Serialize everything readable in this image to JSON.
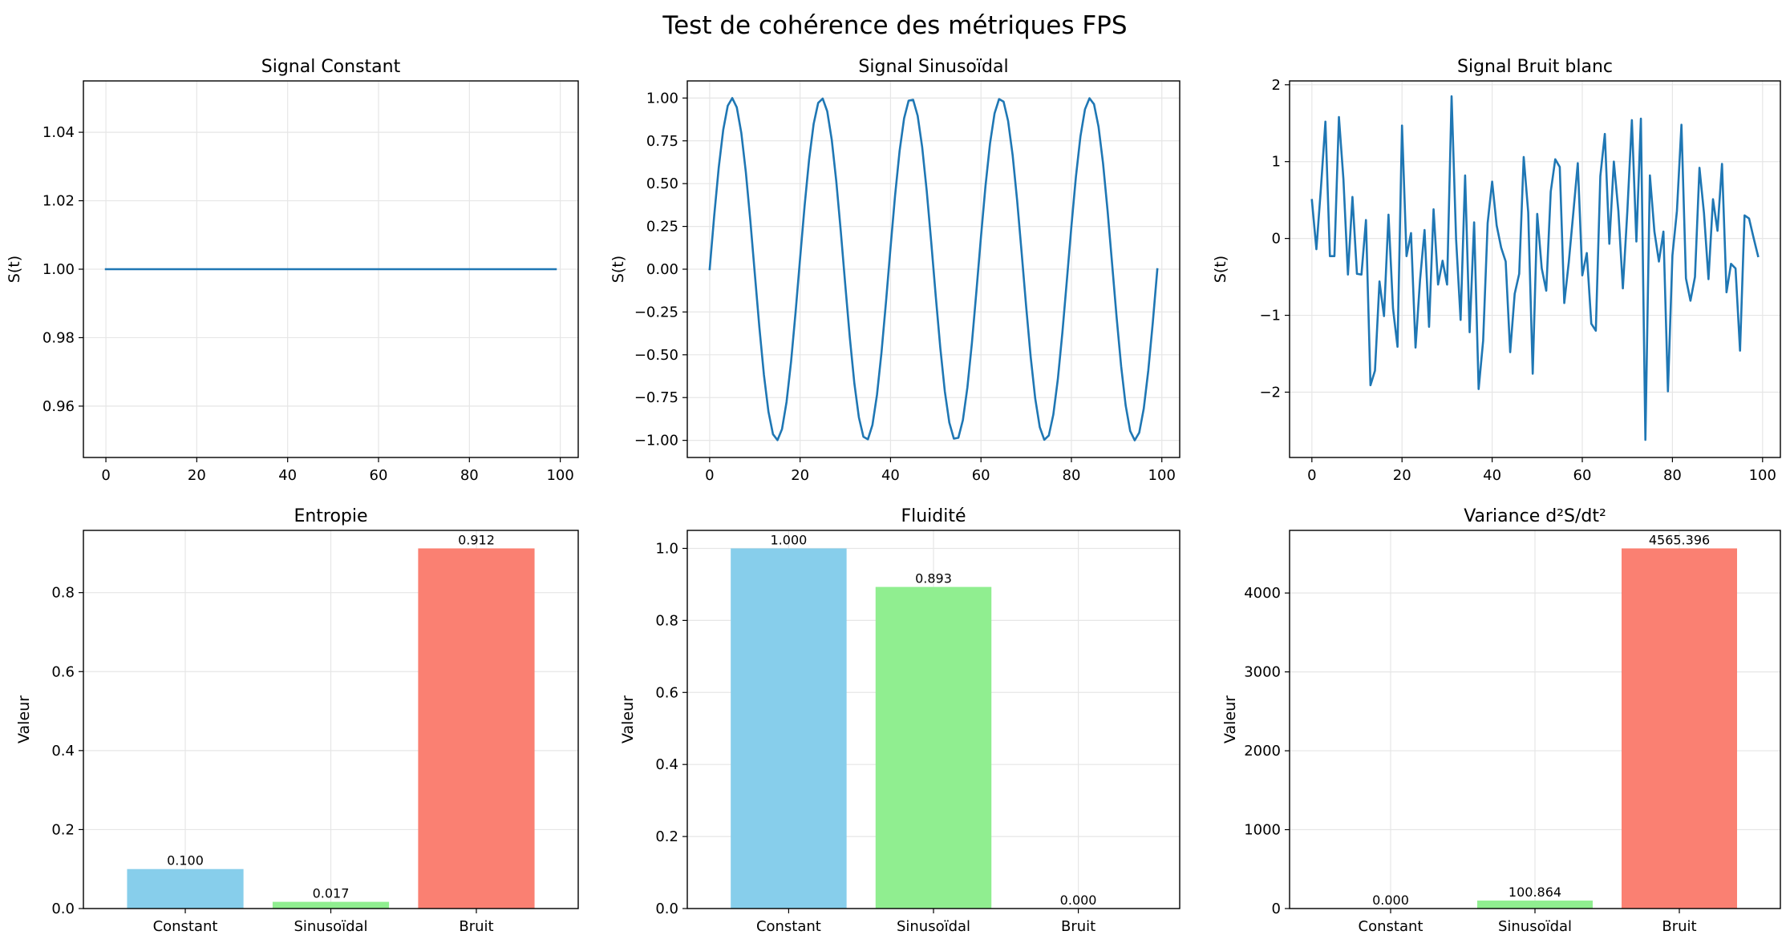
{
  "figure": {
    "suptitle": "Test de cohérence des métriques FPS"
  },
  "chart_data": [
    {
      "type": "line",
      "title": "Signal Constant",
      "xlabel": "",
      "ylabel": "S(t)",
      "xlim": [
        -4.95,
        103.95
      ],
      "ylim": [
        0.945,
        1.055
      ],
      "xticks": [
        0,
        20,
        40,
        60,
        80,
        100
      ],
      "yticks": [
        0.96,
        0.98,
        1.0,
        1.02,
        1.04
      ],
      "ytick_labels": [
        "0.96",
        "0.98",
        "1.00",
        "1.02",
        "1.04"
      ],
      "grid": true,
      "color": "#1f77b4",
      "series": [
        {
          "generator": "constant",
          "n": 100,
          "value": 1.0
        }
      ]
    },
    {
      "type": "line",
      "title": "Signal Sinusoïdal",
      "xlabel": "",
      "ylabel": "S(t)",
      "xlim": [
        -4.95,
        103.95
      ],
      "ylim": [
        -1.1,
        1.1
      ],
      "xticks": [
        0,
        20,
        40,
        60,
        80,
        100
      ],
      "yticks": [
        -1.0,
        -0.75,
        -0.5,
        -0.25,
        0.0,
        0.25,
        0.5,
        0.75,
        1.0
      ],
      "ytick_labels": [
        "−1.00",
        "−0.75",
        "−0.50",
        "−0.25",
        "0.00",
        "0.25",
        "0.50",
        "0.75",
        "1.00"
      ],
      "grid": true,
      "color": "#1f77b4",
      "series": [
        {
          "generator": "sine",
          "n": 100,
          "cycles": 5,
          "amplitude": 1.0
        }
      ]
    },
    {
      "type": "line",
      "title": "Signal Bruit blanc",
      "xlabel": "",
      "ylabel": "S(t)",
      "xlim": [
        -4.95,
        103.95
      ],
      "ylim": [
        -2.85,
        2.05
      ],
      "xticks": [
        0,
        20,
        40,
        60,
        80,
        100
      ],
      "yticks": [
        -2,
        -1,
        0,
        1,
        2
      ],
      "ytick_labels": [
        "−2",
        "−1",
        "0",
        "1",
        "2"
      ],
      "grid": true,
      "color": "#1f77b4",
      "series": [
        {
          "values": [
            0.5,
            -0.14,
            0.65,
            1.52,
            -0.23,
            -0.23,
            1.58,
            0.77,
            -0.47,
            0.54,
            -0.46,
            -0.47,
            0.24,
            -1.91,
            -1.72,
            -0.56,
            -1.01,
            0.31,
            -0.91,
            -1.41,
            1.47,
            -0.23,
            0.07,
            -1.42,
            -0.54,
            0.11,
            -1.15,
            0.38,
            -0.6,
            -0.29,
            -0.6,
            1.85,
            -0.01,
            -1.06,
            0.82,
            -1.22,
            0.21,
            -1.96,
            -1.33,
            0.2,
            0.74,
            0.17,
            -0.12,
            -0.3,
            -1.48,
            -0.72,
            -0.46,
            1.06,
            0.34,
            -1.76,
            0.32,
            -0.39,
            -0.68,
            0.61,
            1.03,
            0.93,
            -0.84,
            -0.31,
            0.33,
            0.98,
            -0.48,
            -0.19,
            -1.11,
            -1.2,
            0.81,
            1.36,
            -0.07,
            1.0,
            0.36,
            -0.65,
            0.36,
            1.54,
            -0.04,
            1.56,
            -2.62,
            0.82,
            0.09,
            -0.3,
            0.09,
            -1.99,
            -0.22,
            0.36,
            1.48,
            -0.52,
            -0.81,
            -0.5,
            0.92,
            0.33,
            -0.53,
            0.51,
            0.1,
            0.97,
            -0.7,
            -0.33,
            -0.39,
            -1.46,
            0.3,
            0.26,
            0.01,
            -0.23
          ]
        }
      ]
    },
    {
      "type": "bar",
      "title": "Entropie",
      "xlabel": "",
      "ylabel": "Valeur",
      "categories": [
        "Constant",
        "Sinusoïdal",
        "Bruit"
      ],
      "values": [
        0.1,
        0.017,
        0.912
      ],
      "data_labels": [
        "0.100",
        "0.017",
        "0.912"
      ],
      "colors": [
        "#87ceeb",
        "#90ee90",
        "#fa8072"
      ],
      "ylim": [
        0,
        0.9576
      ],
      "yticks": [
        0,
        0.2,
        0.4,
        0.6,
        0.8
      ],
      "ytick_labels": [
        "0.0",
        "0.2",
        "0.4",
        "0.6",
        "0.8"
      ],
      "grid": true
    },
    {
      "type": "bar",
      "title": "Fluidité",
      "xlabel": "",
      "ylabel": "Valeur",
      "categories": [
        "Constant",
        "Sinusoïdal",
        "Bruit"
      ],
      "values": [
        1.0,
        0.893,
        0.0
      ],
      "data_labels": [
        "1.000",
        "0.893",
        "0.000"
      ],
      "colors": [
        "#87ceeb",
        "#90ee90",
        "#fa8072"
      ],
      "ylim": [
        0,
        1.05
      ],
      "yticks": [
        0,
        0.2,
        0.4,
        0.6,
        0.8,
        1.0
      ],
      "ytick_labels": [
        "0.0",
        "0.2",
        "0.4",
        "0.6",
        "0.8",
        "1.0"
      ],
      "grid": true
    },
    {
      "type": "bar",
      "title": "Variance d²S/dt²",
      "xlabel": "",
      "ylabel": "Valeur",
      "categories": [
        "Constant",
        "Sinusoïdal",
        "Bruit"
      ],
      "values": [
        0.0,
        100.864,
        4565.396
      ],
      "data_labels": [
        "0.000",
        "100.864",
        "4565.396"
      ],
      "colors": [
        "#87ceeb",
        "#90ee90",
        "#fa8072"
      ],
      "ylim": [
        0,
        4793.67
      ],
      "yticks": [
        0,
        1000,
        2000,
        3000,
        4000
      ],
      "ytick_labels": [
        "0",
        "1000",
        "2000",
        "3000",
        "4000"
      ],
      "grid": true
    }
  ]
}
